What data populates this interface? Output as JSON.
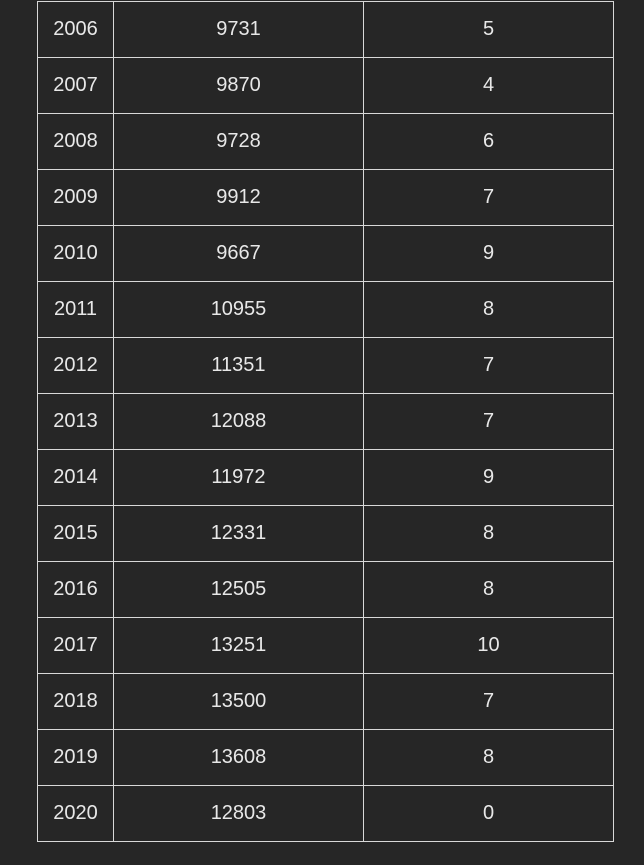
{
  "table": {
    "rows": [
      [
        "2006",
        "9731",
        "5"
      ],
      [
        "2007",
        "9870",
        "4"
      ],
      [
        "2008",
        "9728",
        "6"
      ],
      [
        "2009",
        "9912",
        "7"
      ],
      [
        "2010",
        "9667",
        "9"
      ],
      [
        "2011",
        "10955",
        "8"
      ],
      [
        "2012",
        "11351",
        "7"
      ],
      [
        "2013",
        "12088",
        "7"
      ],
      [
        "2014",
        "11972",
        "9"
      ],
      [
        "2015",
        "12331",
        "8"
      ],
      [
        "2016",
        "12505",
        "8"
      ],
      [
        "2017",
        "13251",
        "10"
      ],
      [
        "2018",
        "13500",
        "7"
      ],
      [
        "2019",
        "13608",
        "8"
      ],
      [
        "2020",
        "12803",
        "0"
      ]
    ]
  }
}
